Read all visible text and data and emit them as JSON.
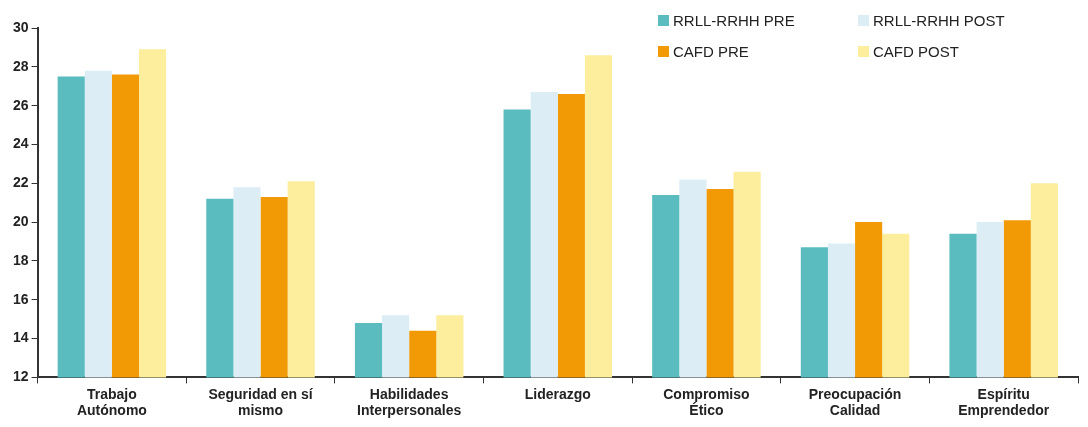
{
  "chart_data": {
    "type": "bar",
    "categories": [
      "Trabajo\nAutónomo",
      "Seguridad en sí\nmismo",
      "Habilidades\nInterpersonales",
      "Liderazgo",
      "Compromiso\nÉtico",
      "Preocupación\nCalidad",
      "Espíritu\nEmprendedor"
    ],
    "series": [
      {
        "name": "RRLL-RRHH PRE",
        "color": "#5bbcc0",
        "values": [
          27.5,
          21.2,
          14.8,
          25.8,
          21.4,
          18.7,
          19.4
        ]
      },
      {
        "name": "RRLL-RRHH POST",
        "color": "#dcedf5",
        "values": [
          27.8,
          21.8,
          15.2,
          26.7,
          22.2,
          18.9,
          20.0
        ]
      },
      {
        "name": "CAFD PRE",
        "color": "#f29a05",
        "values": [
          27.6,
          21.3,
          14.4,
          26.6,
          21.7,
          20.0,
          20.1
        ]
      },
      {
        "name": "CAFD POST",
        "color": "#fcee9c",
        "values": [
          28.9,
          22.1,
          15.2,
          28.6,
          22.6,
          19.4,
          22.0
        ]
      }
    ],
    "ylim": [
      12,
      30
    ],
    "yticks": [
      12,
      14,
      16,
      18,
      20,
      22,
      24,
      26,
      28,
      30
    ],
    "grid": false,
    "legend": "top right"
  }
}
